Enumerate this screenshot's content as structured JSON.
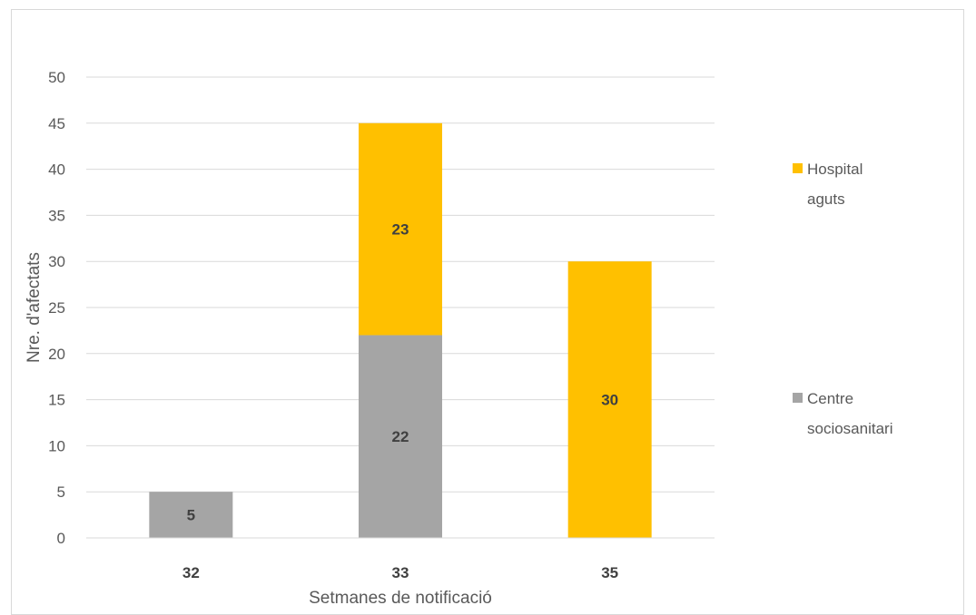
{
  "chart_data": {
    "type": "bar",
    "stacked": true,
    "title": "",
    "xlabel": "Setmanes de notificació",
    "ylabel": "Nre. d'afectats",
    "categories": [
      "32",
      "33",
      "35"
    ],
    "ylim": [
      0,
      50
    ],
    "yticks": [
      0,
      5,
      10,
      15,
      20,
      25,
      30,
      35,
      40,
      45,
      50
    ],
    "grid": true,
    "legend_position": "right",
    "series": [
      {
        "name": "Centre sociosanitari",
        "values": [
          5,
          22,
          0
        ],
        "color": "#a5a5a5"
      },
      {
        "name": "Hospital aguts",
        "values": [
          0,
          23,
          30
        ],
        "color": "#ffc000"
      }
    ],
    "legend": [
      {
        "series_index": 1,
        "lines": [
          "Hospital",
          "aguts"
        ]
      },
      {
        "series_index": 0,
        "lines": [
          "Centre",
          "sociosanitari"
        ]
      }
    ]
  }
}
